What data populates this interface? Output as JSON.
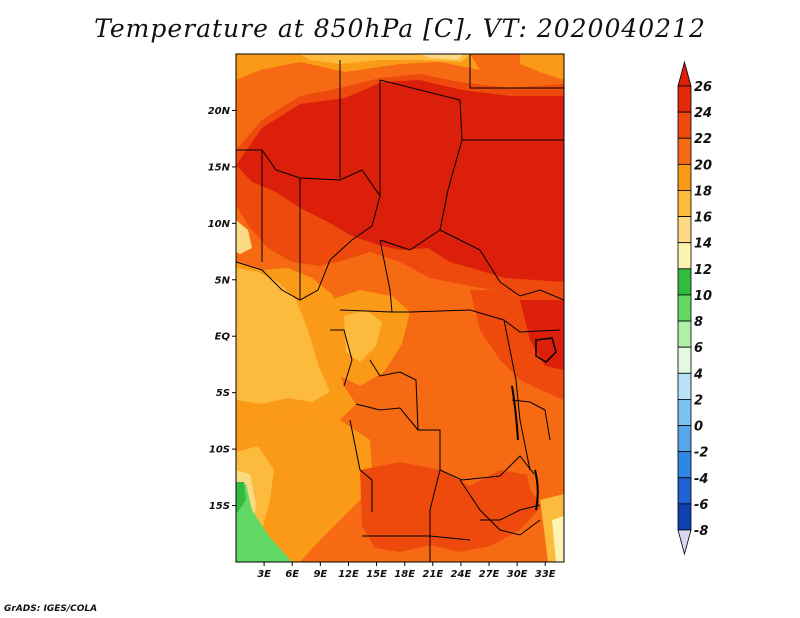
{
  "title": "Temperature at 850hPa [C], VT: 2020040212",
  "credit": "GrADS: IGES/COLA",
  "map": {
    "lon_range": [
      0,
      35
    ],
    "lat_range": [
      -20,
      25
    ],
    "lat_ticks": [
      {
        "value": 20,
        "label": "20N"
      },
      {
        "value": 15,
        "label": "15N"
      },
      {
        "value": 10,
        "label": "10N"
      },
      {
        "value": 5,
        "label": "5N"
      },
      {
        "value": 0,
        "label": "EQ"
      },
      {
        "value": -5,
        "label": "5S"
      },
      {
        "value": -10,
        "label": "10S"
      },
      {
        "value": -15,
        "label": "15S"
      }
    ],
    "lon_ticks": [
      {
        "value": 3,
        "label": "3E"
      },
      {
        "value": 6,
        "label": "6E"
      },
      {
        "value": 9,
        "label": "9E"
      },
      {
        "value": 12,
        "label": "12E"
      },
      {
        "value": 15,
        "label": "15E"
      },
      {
        "value": 18,
        "label": "18E"
      },
      {
        "value": 21,
        "label": "21E"
      },
      {
        "value": 24,
        "label": "24E"
      },
      {
        "value": 27,
        "label": "27E"
      },
      {
        "value": 30,
        "label": "30E"
      },
      {
        "value": 33,
        "label": "33E"
      }
    ]
  },
  "colorbar": {
    "levels": [
      {
        "label": "26",
        "color": "#e22a0a"
      },
      {
        "label": "24",
        "color": "#ee4a0d"
      },
      {
        "label": "22",
        "color": "#f56a12"
      },
      {
        "label": "20",
        "color": "#fb9a17"
      },
      {
        "label": "18",
        "color": "#fcbb3c"
      },
      {
        "label": "16",
        "color": "#fcd983"
      },
      {
        "label": "14",
        "color": "#fdf4b4"
      },
      {
        "label": "12",
        "color": "#33bb3f"
      },
      {
        "label": "10",
        "color": "#63d965"
      },
      {
        "label": "8",
        "color": "#aef0a6"
      },
      {
        "label": "6",
        "color": "#e4f8e2"
      },
      {
        "label": "4",
        "color": "#b8e3f6"
      },
      {
        "label": "2",
        "color": "#7ec2f0"
      },
      {
        "label": "0",
        "color": "#56a6ea"
      },
      {
        "label": "-2",
        "color": "#2f86e4"
      },
      {
        "label": "-4",
        "color": "#1e62d4"
      },
      {
        "label": "-6",
        "color": "#1040b0"
      },
      {
        "label": "-8",
        "color": "#0a1f88"
      }
    ],
    "over_color": "#dc1f0a",
    "under_color": "#d8d8f0"
  }
}
